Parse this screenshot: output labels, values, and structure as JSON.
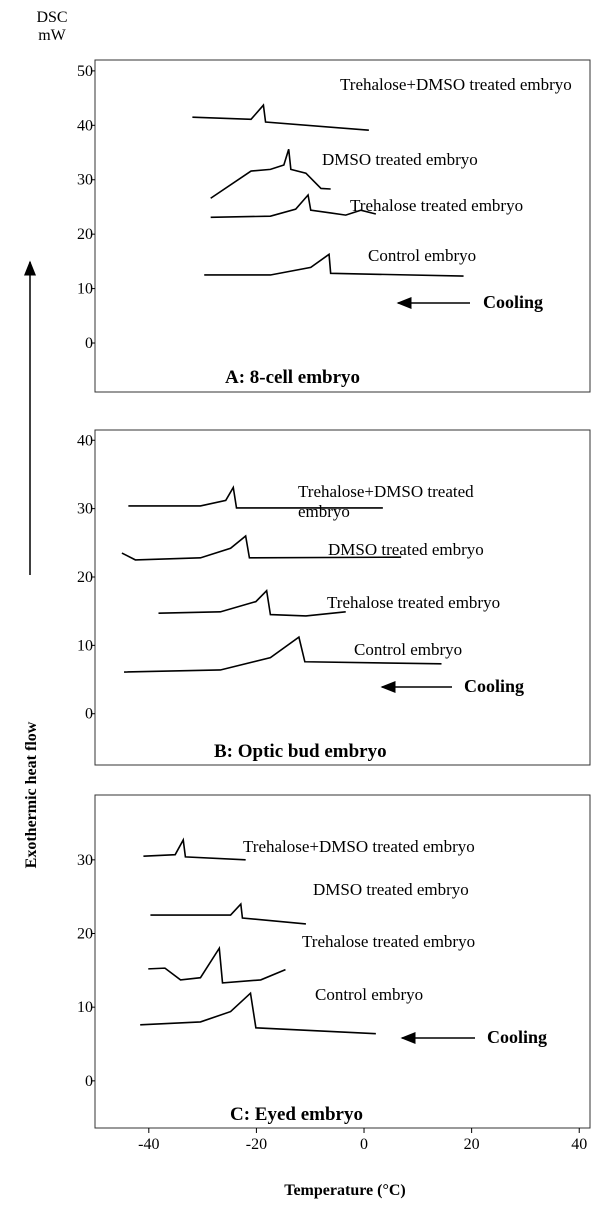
{
  "y_unit": [
    "DSC",
    "mW"
  ],
  "y_label": "Exothermic heat flow",
  "x_label": "Temperature (°C)",
  "chart_data": [
    {
      "type": "line",
      "title": "A: 8-cell embryo",
      "annotation": "Cooling",
      "xlim": [
        -50,
        42
      ],
      "ylim": [
        -9,
        52
      ],
      "yticks": [
        0,
        10,
        20,
        30,
        40,
        50
      ],
      "series": [
        {
          "name": "Trehalose+DMSO treated embryo",
          "color": "#000000",
          "x": [
            -31.9,
            -21,
            -18.7,
            -18.3,
            0.9
          ],
          "values": [
            41.5,
            41.1,
            43.7,
            40.6,
            39.1
          ]
        },
        {
          "name": "DMSO treated embryo",
          "color": "#000000",
          "x": [
            -28.5,
            -21,
            -17.4,
            -14.9,
            -14,
            -13.6,
            -10.8,
            -8,
            -6.2
          ],
          "values": [
            26.6,
            31.6,
            31.9,
            32.7,
            35.6,
            31.9,
            31.2,
            28.4,
            28.3
          ]
        },
        {
          "name": "Trehalose treated embryo",
          "color": "#000000",
          "x": [
            -28.5,
            -17.4,
            -12.7,
            -10.4,
            -9.9,
            -6.2,
            -3.4,
            -0.6,
            2.2
          ],
          "values": [
            23.1,
            23.3,
            24.6,
            27.2,
            24.4,
            23.9,
            23.5,
            24.4,
            23.7
          ]
        },
        {
          "name": "Control embryo",
          "color": "#000000",
          "x": [
            -29.7,
            -17.4,
            -9.9,
            -6.5,
            -6.2,
            18.5
          ],
          "values": [
            12.5,
            12.5,
            13.9,
            16.3,
            12.8,
            12.3
          ]
        }
      ]
    },
    {
      "type": "line",
      "title": "B: Optic bud embryo",
      "annotation": "Cooling",
      "xlim": [
        -50,
        42
      ],
      "ylim": [
        -7.5,
        41.5
      ],
      "yticks": [
        0,
        10,
        20,
        30,
        40
      ],
      "series": [
        {
          "name": "Trehalose+DMSO treated embryo",
          "color": "#000000",
          "x": [
            -43.8,
            -30.4,
            -25.7,
            -24.3,
            -23.7,
            3.5
          ],
          "values": [
            30.4,
            30.4,
            31.2,
            33.1,
            30.1,
            30.1
          ]
        },
        {
          "name": "DMSO treated embryo",
          "color": "#000000",
          "x": [
            -45,
            -42.5,
            -30.4,
            -24.8,
            -22,
            -21.3,
            6.9
          ],
          "values": [
            23.5,
            22.5,
            22.8,
            24.2,
            26,
            22.8,
            22.9
          ]
        },
        {
          "name": "Trehalose treated embryo",
          "color": "#000000",
          "x": [
            -38.2,
            -26.7,
            -20.1,
            -18.1,
            -17.4,
            -10.8,
            -3.4
          ],
          "values": [
            14.7,
            14.9,
            16.4,
            18,
            14.5,
            14.3,
            14.9
          ]
        },
        {
          "name": "Control embryo",
          "color": "#000000",
          "x": [
            -44.6,
            -26.7,
            -17.4,
            -12.1,
            -11,
            14.4
          ],
          "values": [
            6.1,
            6.4,
            8.2,
            11.2,
            7.6,
            7.3
          ]
        }
      ]
    },
    {
      "type": "line",
      "title": "C: Eyed embryo",
      "annotation": "Cooling",
      "xlim": [
        -50,
        42
      ],
      "ylim": [
        -6.4,
        38.8
      ],
      "yticks": [
        0,
        10,
        20,
        30
      ],
      "xticks": [
        -40,
        -20,
        0,
        20,
        40
      ],
      "series": [
        {
          "name": "Trehalose+DMSO treated embryo",
          "color": "#000000",
          "x": [
            -41,
            -35.1,
            -33.6,
            -33.2,
            -22
          ],
          "values": [
            30.5,
            30.7,
            32.7,
            30.4,
            30
          ]
        },
        {
          "name": "DMSO treated embryo",
          "color": "#000000",
          "x": [
            -39.7,
            -24.8,
            -22.9,
            -22.6,
            -10.8
          ],
          "values": [
            22.5,
            22.5,
            24,
            22.1,
            21.3
          ]
        },
        {
          "name": "Trehalose treated embryo",
          "color": "#000000",
          "x": [
            -40.1,
            -37,
            -34.1,
            -30.4,
            -26.9,
            -26.3,
            -19.2,
            -14.6
          ],
          "values": [
            15.2,
            15.3,
            13.7,
            14,
            18,
            13.3,
            13.7,
            15.1
          ]
        },
        {
          "name": "Control embryo",
          "color": "#000000",
          "x": [
            -41.6,
            -30.4,
            -24.8,
            -21.1,
            -20.1,
            2.2
          ],
          "values": [
            7.6,
            8,
            9.4,
            11.9,
            7.2,
            6.4
          ]
        }
      ]
    }
  ]
}
